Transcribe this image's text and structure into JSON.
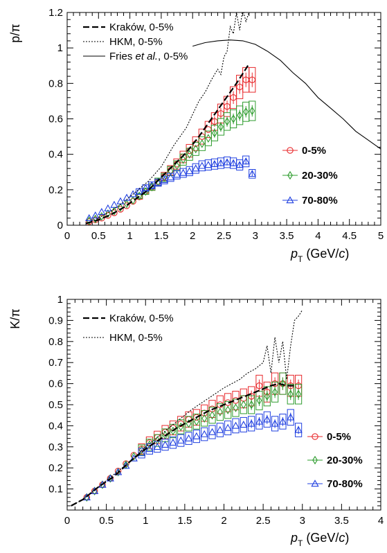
{
  "chart_data": [
    {
      "type": "scatter",
      "title": "",
      "ylabel": "p/π",
      "xlabel_main": "p",
      "xlabel_sub": "T",
      "xlabel_unit_pre": " (GeV/",
      "xlabel_unit_c": "c",
      "xlabel_unit_post": ")",
      "xlim": [
        0,
        5
      ],
      "ylim": [
        0,
        1.2
      ],
      "xticks": [
        0,
        0.5,
        1,
        1.5,
        2,
        2.5,
        3,
        3.5,
        4,
        4.5,
        5
      ],
      "xtick_labels": [
        "0",
        "0.5",
        "1",
        "1.5",
        "2",
        "2.5",
        "3",
        "3.5",
        "4",
        "4.5",
        "5"
      ],
      "yticks": [
        0,
        0.2,
        0.4,
        0.6,
        0.8,
        1,
        1.2
      ],
      "ytick_labels": [
        "0",
        "0.2",
        "0.4",
        "0.6",
        "0.8",
        "1",
        "1.2"
      ],
      "legend_models": [
        {
          "style": "dash",
          "parts": [
            {
              "text": "Kraków, 0-5%",
              "italic": false
            }
          ]
        },
        {
          "style": "dot",
          "parts": [
            {
              "text": "HKM, 0-5%",
              "italic": false
            }
          ]
        },
        {
          "style": "solid",
          "parts": [
            {
              "text": "Fries ",
              "italic": false
            },
            {
              "text": "et al.",
              "italic": true
            },
            {
              "text": ", 0-5%",
              "italic": false
            }
          ]
        }
      ],
      "series": [
        {
          "name": "0-5%",
          "color": "#e8282b",
          "marker": "circle",
          "x": [
            0.35,
            0.45,
            0.55,
            0.65,
            0.75,
            0.85,
            0.95,
            1.05,
            1.15,
            1.25,
            1.35,
            1.45,
            1.55,
            1.65,
            1.75,
            1.85,
            1.95,
            2.05,
            2.15,
            2.25,
            2.35,
            2.45,
            2.55,
            2.65,
            2.75,
            2.85,
            2.95
          ],
          "y": [
            0.02,
            0.03,
            0.04,
            0.055,
            0.07,
            0.09,
            0.11,
            0.135,
            0.16,
            0.19,
            0.215,
            0.245,
            0.275,
            0.31,
            0.345,
            0.385,
            0.42,
            0.46,
            0.5,
            0.54,
            0.585,
            0.63,
            0.67,
            0.72,
            0.78,
            0.82,
            0.82
          ]
        },
        {
          "name": "20-30%",
          "color": "#2e9c2e",
          "marker": "diamond",
          "x": [
            0.35,
            0.45,
            0.55,
            0.65,
            0.75,
            0.85,
            0.95,
            1.05,
            1.15,
            1.25,
            1.35,
            1.45,
            1.55,
            1.65,
            1.75,
            1.85,
            1.95,
            2.05,
            2.15,
            2.25,
            2.35,
            2.45,
            2.55,
            2.65,
            2.75,
            2.85,
            2.95
          ],
          "y": [
            0.025,
            0.035,
            0.05,
            0.065,
            0.08,
            0.1,
            0.12,
            0.14,
            0.165,
            0.19,
            0.215,
            0.245,
            0.27,
            0.305,
            0.335,
            0.37,
            0.4,
            0.43,
            0.46,
            0.49,
            0.52,
            0.555,
            0.585,
            0.6,
            0.62,
            0.64,
            0.645
          ]
        },
        {
          "name": "70-80%",
          "color": "#1f3fe0",
          "marker": "triangle",
          "x": [
            0.35,
            0.45,
            0.55,
            0.65,
            0.75,
            0.85,
            0.95,
            1.05,
            1.15,
            1.25,
            1.35,
            1.45,
            1.55,
            1.65,
            1.75,
            1.85,
            1.95,
            2.05,
            2.15,
            2.25,
            2.35,
            2.45,
            2.55,
            2.65,
            2.75,
            2.85,
            2.95
          ],
          "y": [
            0.04,
            0.055,
            0.075,
            0.095,
            0.115,
            0.135,
            0.155,
            0.175,
            0.19,
            0.21,
            0.225,
            0.24,
            0.255,
            0.27,
            0.285,
            0.295,
            0.305,
            0.32,
            0.335,
            0.34,
            0.345,
            0.35,
            0.355,
            0.35,
            0.34,
            0.36,
            0.29
          ]
        }
      ],
      "models": [
        {
          "name": "Kraków, 0-5%",
          "style": "dash",
          "x": [
            0.3,
            0.5,
            0.7,
            0.9,
            1.1,
            1.3,
            1.5,
            1.7,
            1.9,
            2.1,
            2.3,
            2.5,
            2.7,
            2.9
          ],
          "y": [
            0.01,
            0.03,
            0.06,
            0.1,
            0.15,
            0.2,
            0.27,
            0.34,
            0.41,
            0.5,
            0.6,
            0.7,
            0.8,
            0.91
          ]
        },
        {
          "name": "HKM, 0-5%",
          "style": "dot",
          "x": [
            0.3,
            0.5,
            0.7,
            0.9,
            1.1,
            1.3,
            1.5,
            1.7,
            1.9,
            2.1,
            2.2,
            2.3,
            2.4,
            2.45,
            2.5,
            2.55,
            2.6,
            2.65,
            2.7,
            2.75,
            2.8,
            2.85,
            2.9
          ],
          "y": [
            0.01,
            0.04,
            0.08,
            0.13,
            0.19,
            0.25,
            0.33,
            0.45,
            0.55,
            0.7,
            0.75,
            0.82,
            0.88,
            0.85,
            0.95,
            0.98,
            1.12,
            1.08,
            1.2,
            1.1,
            1.22,
            1.15,
            1.2
          ]
        },
        {
          "name": "Fries et al., 0-5%",
          "style": "solid",
          "x": [
            2.0,
            2.2,
            2.4,
            2.6,
            2.8,
            3.0,
            3.2,
            3.4,
            3.6,
            3.8,
            4.0,
            4.2,
            4.4,
            4.6,
            4.8,
            5.0
          ],
          "y": [
            1.01,
            1.03,
            1.04,
            1.045,
            1.04,
            1.02,
            0.98,
            0.93,
            0.86,
            0.8,
            0.72,
            0.66,
            0.6,
            0.53,
            0.48,
            0.43
          ]
        }
      ],
      "legend_data": [
        "0-5%",
        "20-30%",
        "70-80%"
      ]
    },
    {
      "type": "scatter",
      "title": "",
      "ylabel": "K/π",
      "xlabel_main": "p",
      "xlabel_sub": "T",
      "xlabel_unit_pre": " (GeV/",
      "xlabel_unit_c": "c",
      "xlabel_unit_post": ")",
      "xlim": [
        0,
        4
      ],
      "ylim": [
        0,
        1
      ],
      "xticks": [
        0,
        0.5,
        1,
        1.5,
        2,
        2.5,
        3,
        3.5,
        4
      ],
      "xtick_labels": [
        "0",
        "0.5",
        "1",
        "1.5",
        "2",
        "2.5",
        "3",
        "3.5",
        "4"
      ],
      "yticks": [
        0.1,
        0.2,
        0.3,
        0.4,
        0.5,
        0.6,
        0.7,
        0.8,
        0.9,
        1
      ],
      "ytick_labels": [
        "0.1",
        "0.2",
        "0.3",
        "0.4",
        "0.5",
        "0.6",
        "0.7",
        "0.8",
        "0.9",
        "1"
      ],
      "legend_models": [
        {
          "style": "dash",
          "parts": [
            {
              "text": "Kraków, 0-5%",
              "italic": false
            }
          ]
        },
        {
          "style": "dot",
          "parts": [
            {
              "text": "HKM, 0-5%",
              "italic": false
            }
          ]
        }
      ],
      "series": [
        {
          "name": "0-5%",
          "color": "#e8282b",
          "marker": "circle",
          "x": [
            0.25,
            0.35,
            0.45,
            0.55,
            0.65,
            0.75,
            0.85,
            0.95,
            1.05,
            1.15,
            1.25,
            1.35,
            1.45,
            1.55,
            1.65,
            1.75,
            1.85,
            1.95,
            2.05,
            2.15,
            2.25,
            2.35,
            2.45,
            2.55,
            2.65,
            2.75,
            2.85,
            2.95
          ],
          "y": [
            0.06,
            0.09,
            0.12,
            0.15,
            0.185,
            0.22,
            0.26,
            0.29,
            0.32,
            0.345,
            0.37,
            0.39,
            0.41,
            0.43,
            0.44,
            0.46,
            0.48,
            0.5,
            0.51,
            0.52,
            0.53,
            0.54,
            0.59,
            0.56,
            0.6,
            0.6,
            0.59,
            0.59
          ]
        },
        {
          "name": "20-30%",
          "color": "#2e9c2e",
          "marker": "diamond",
          "x": [
            0.25,
            0.35,
            0.45,
            0.55,
            0.65,
            0.75,
            0.85,
            0.95,
            1.05,
            1.15,
            1.25,
            1.35,
            1.45,
            1.55,
            1.65,
            1.75,
            1.85,
            1.95,
            2.05,
            2.15,
            2.25,
            2.35,
            2.45,
            2.55,
            2.65,
            2.75,
            2.85,
            2.95
          ],
          "y": [
            0.06,
            0.09,
            0.12,
            0.15,
            0.18,
            0.215,
            0.255,
            0.285,
            0.31,
            0.33,
            0.355,
            0.375,
            0.395,
            0.41,
            0.42,
            0.435,
            0.45,
            0.465,
            0.475,
            0.485,
            0.5,
            0.5,
            0.52,
            0.54,
            0.56,
            0.6,
            0.55,
            0.55
          ]
        },
        {
          "name": "70-80%",
          "color": "#1f3fe0",
          "marker": "triangle",
          "x": [
            0.25,
            0.35,
            0.45,
            0.55,
            0.65,
            0.75,
            0.85,
            0.95,
            1.05,
            1.15,
            1.25,
            1.35,
            1.45,
            1.55,
            1.65,
            1.75,
            1.85,
            1.95,
            2.05,
            2.15,
            2.25,
            2.35,
            2.45,
            2.55,
            2.65,
            2.75,
            2.85,
            2.95
          ],
          "y": [
            0.06,
            0.09,
            0.12,
            0.15,
            0.18,
            0.21,
            0.245,
            0.27,
            0.29,
            0.3,
            0.31,
            0.32,
            0.33,
            0.34,
            0.35,
            0.36,
            0.37,
            0.38,
            0.39,
            0.4,
            0.405,
            0.41,
            0.42,
            0.43,
            0.41,
            0.42,
            0.44,
            0.38
          ]
        }
      ],
      "models": [
        {
          "name": "Kraków, 0-5%",
          "style": "dash",
          "x": [
            0.05,
            0.2,
            0.4,
            0.6,
            0.8,
            1.0,
            1.2,
            1.4,
            1.6,
            1.8,
            2.0,
            2.2,
            2.4,
            2.6,
            2.7,
            2.8,
            2.9
          ],
          "y": [
            0.02,
            0.05,
            0.11,
            0.16,
            0.23,
            0.29,
            0.34,
            0.39,
            0.43,
            0.47,
            0.5,
            0.53,
            0.56,
            0.59,
            0.6,
            0.59,
            0.59
          ]
        },
        {
          "name": "HKM, 0-5%",
          "style": "dot",
          "x": [
            0.05,
            0.2,
            0.4,
            0.6,
            0.8,
            1.0,
            1.2,
            1.4,
            1.6,
            1.8,
            2.0,
            2.2,
            2.3,
            2.4,
            2.5,
            2.55,
            2.6,
            2.65,
            2.7,
            2.75,
            2.8,
            2.85,
            2.9,
            2.95,
            3.0
          ],
          "y": [
            0.02,
            0.05,
            0.11,
            0.17,
            0.23,
            0.3,
            0.36,
            0.42,
            0.48,
            0.53,
            0.58,
            0.62,
            0.65,
            0.67,
            0.7,
            0.78,
            0.65,
            0.82,
            0.7,
            0.8,
            0.62,
            0.78,
            0.9,
            0.92,
            0.95
          ]
        }
      ],
      "legend_data": [
        "0-5%",
        "20-30%",
        "70-80%"
      ]
    }
  ]
}
